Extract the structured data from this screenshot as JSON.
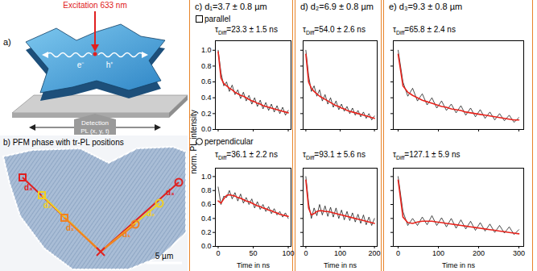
{
  "panel_a": {
    "label": "a)",
    "excitation": "Excitation 633 nm",
    "carriers": [
      "e⁻",
      "h⁺"
    ],
    "detection": "Detection",
    "detection_sub": "PL (x, y, t)"
  },
  "panel_b": {
    "title": "b) PFM phase with tr-PL positions",
    "labels": [
      "d₁",
      "d₂",
      "d₃"
    ],
    "scale_bar": "5 µm"
  },
  "chart_data": [
    {
      "type": "line",
      "title": "c) d₁=3.7 ± 0.8 µm",
      "ylabel": "norm. PL intensity",
      "marker_label": {
        "text": "parallel",
        "marker": "square"
      },
      "annotation": {
        "symbol": "τ",
        "subscript": "Diff",
        "text": "=23.3 ± 1.5 ns"
      },
      "x": [
        0,
        4,
        8,
        12,
        16,
        20,
        24,
        28,
        32,
        36,
        40,
        44,
        48,
        52,
        56,
        60,
        64,
        68,
        72,
        76,
        80,
        84,
        88,
        92,
        96,
        100
      ],
      "series": [
        {
          "color": "#000000",
          "values": [
            1.0,
            0.72,
            0.55,
            0.6,
            0.48,
            0.56,
            0.44,
            0.5,
            0.39,
            0.47,
            0.36,
            0.43,
            0.32,
            0.4,
            0.29,
            0.37,
            0.26,
            0.34,
            0.24,
            0.32,
            0.22,
            0.3,
            0.2,
            0.28,
            0.18,
            0.24
          ]
        },
        {
          "color": "#e8231c",
          "values": [
            0.98,
            0.65,
            0.58,
            0.55,
            0.52,
            0.5,
            0.47,
            0.45,
            0.43,
            0.42,
            0.4,
            0.38,
            0.36,
            0.35,
            0.33,
            0.32,
            0.3,
            0.29,
            0.28,
            0.27,
            0.26,
            0.25,
            0.24,
            0.23,
            0.22,
            0.21
          ]
        }
      ],
      "xlim": [
        -4,
        104
      ],
      "xticks": [
        0,
        50,
        100
      ],
      "ylim": [
        0,
        1.12
      ],
      "yticks": [
        {
          "value": 0,
          "label": "0.0"
        },
        {
          "value": 0.2,
          "label": "0.2"
        },
        {
          "value": 0.4,
          "label": "0.4"
        },
        {
          "value": 0.6,
          "label": "0.6"
        },
        {
          "value": 0.8,
          "label": "0.8"
        },
        {
          "value": 1,
          "label": "1.0"
        }
      ],
      "tick_labels": "y"
    },
    {
      "type": "line",
      "xlabel": "Time in ns",
      "marker_label": {
        "text": "perpendicular",
        "marker": "circle"
      },
      "annotation": {
        "symbol": "τ",
        "subscript": "Diff",
        "text": "=36.1 ± 2.2 ns"
      },
      "x": [
        0,
        4,
        8,
        12,
        16,
        20,
        24,
        28,
        32,
        36,
        40,
        44,
        48,
        52,
        56,
        60,
        64,
        68,
        72,
        76,
        80,
        84,
        88,
        92,
        96,
        100
      ],
      "series": [
        {
          "color": "#000000",
          "values": [
            0.85,
            0.6,
            0.72,
            0.7,
            0.8,
            0.68,
            0.77,
            0.65,
            0.75,
            0.62,
            0.7,
            0.6,
            0.68,
            0.55,
            0.64,
            0.53,
            0.6,
            0.5,
            0.57,
            0.47,
            0.54,
            0.45,
            0.5,
            0.42,
            0.48,
            0.4
          ]
        },
        {
          "color": "#e8231c",
          "values": [
            0.65,
            0.62,
            0.68,
            0.73,
            0.74,
            0.73,
            0.72,
            0.7,
            0.69,
            0.67,
            0.65,
            0.64,
            0.62,
            0.6,
            0.58,
            0.57,
            0.55,
            0.54,
            0.52,
            0.51,
            0.49,
            0.48,
            0.46,
            0.45,
            0.44,
            0.43
          ]
        }
      ],
      "xlim": [
        -4,
        104
      ],
      "xticks": [
        0,
        50,
        100
      ],
      "ylim": [
        0,
        1.12
      ],
      "yticks": [
        {
          "value": 0,
          "label": "0.0"
        },
        {
          "value": 0.2,
          "label": "0.2"
        },
        {
          "value": 0.4,
          "label": "0.4"
        },
        {
          "value": 0.6,
          "label": "0.6"
        },
        {
          "value": 0.8,
          "label": "0.8"
        },
        {
          "value": 1,
          "label": "1.0"
        }
      ],
      "tick_labels": true
    },
    {
      "type": "line",
      "title": "d) d₂=6.9 ± 0.8 µm",
      "annotation": {
        "symbol": "τ",
        "subscript": "Diff",
        "text": "=54.0 ± 2.6 ns"
      },
      "x": [
        0,
        8,
        16,
        24,
        32,
        40,
        48,
        56,
        64,
        72,
        80,
        88,
        96,
        104,
        112,
        120,
        128,
        136,
        144,
        152,
        160,
        168,
        176,
        184,
        192,
        200
      ],
      "series": [
        {
          "color": "#000000",
          "values": [
            1.0,
            0.68,
            0.48,
            0.55,
            0.42,
            0.5,
            0.36,
            0.44,
            0.32,
            0.4,
            0.28,
            0.36,
            0.25,
            0.32,
            0.23,
            0.29,
            0.2,
            0.27,
            0.18,
            0.24,
            0.16,
            0.22,
            0.14,
            0.2,
            0.12,
            0.17
          ]
        },
        {
          "color": "#e8231c",
          "values": [
            0.95,
            0.6,
            0.52,
            0.48,
            0.45,
            0.42,
            0.4,
            0.38,
            0.36,
            0.34,
            0.32,
            0.3,
            0.29,
            0.27,
            0.26,
            0.24,
            0.23,
            0.22,
            0.21,
            0.2,
            0.19,
            0.18,
            0.17,
            0.16,
            0.15,
            0.14
          ]
        }
      ],
      "xlim": [
        -8,
        208
      ],
      "xticks": [
        0,
        100,
        200
      ],
      "ylim": [
        0,
        1.12
      ],
      "yticks": [
        {
          "value": 0,
          "label": "0.0"
        },
        {
          "value": 0.2,
          "label": "0.2"
        },
        {
          "value": 0.4,
          "label": "0.4"
        },
        {
          "value": 0.6,
          "label": "0.6"
        },
        {
          "value": 0.8,
          "label": "0.8"
        },
        {
          "value": 1,
          "label": "1.0"
        }
      ],
      "tick_labels": false
    },
    {
      "type": "line",
      "xlabel": "Time in ns",
      "annotation": {
        "symbol": "τ",
        "subscript": "Diff",
        "text": "=93.1 ± 5.6 ns"
      },
      "x": [
        0,
        8,
        16,
        24,
        32,
        40,
        48,
        56,
        64,
        72,
        80,
        88,
        96,
        104,
        112,
        120,
        128,
        136,
        144,
        152,
        160,
        168,
        176,
        184,
        192,
        200
      ],
      "series": [
        {
          "color": "#000000",
          "values": [
            1.0,
            0.62,
            0.4,
            0.55,
            0.44,
            0.6,
            0.45,
            0.58,
            0.43,
            0.56,
            0.42,
            0.55,
            0.4,
            0.52,
            0.38,
            0.5,
            0.37,
            0.48,
            0.35,
            0.46,
            0.33,
            0.45,
            0.31,
            0.42,
            0.3,
            0.4
          ]
        },
        {
          "color": "#e8231c",
          "values": [
            0.95,
            0.55,
            0.45,
            0.47,
            0.5,
            0.51,
            0.51,
            0.5,
            0.5,
            0.49,
            0.48,
            0.47,
            0.46,
            0.45,
            0.44,
            0.43,
            0.42,
            0.41,
            0.4,
            0.39,
            0.38,
            0.37,
            0.36,
            0.35,
            0.34,
            0.33
          ]
        }
      ],
      "xlim": [
        -8,
        208
      ],
      "xticks": [
        0,
        100,
        200
      ],
      "ylim": [
        0,
        1.12
      ],
      "yticks": [
        {
          "value": 0,
          "label": "0.0"
        },
        {
          "value": 0.2,
          "label": "0.2"
        },
        {
          "value": 0.4,
          "label": "0.4"
        },
        {
          "value": 0.6,
          "label": "0.6"
        },
        {
          "value": 0.8,
          "label": "0.8"
        },
        {
          "value": 1,
          "label": "1.0"
        }
      ],
      "tick_labels": "x"
    },
    {
      "type": "line",
      "title": "e) d₃=9.3 ± 0.8 µm",
      "annotation": {
        "symbol": "τ",
        "subscript": "Diff",
        "text": "=65.8 ± 2.4 ns"
      },
      "x": [
        0,
        12,
        24,
        36,
        48,
        60,
        72,
        84,
        96,
        108,
        120,
        132,
        144,
        156,
        168,
        180,
        192,
        204,
        216,
        228,
        240,
        252,
        264,
        276,
        288,
        300
      ],
      "series": [
        {
          "color": "#000000",
          "values": [
            1.0,
            0.6,
            0.42,
            0.52,
            0.36,
            0.45,
            0.31,
            0.4,
            0.27,
            0.36,
            0.24,
            0.32,
            0.21,
            0.3,
            0.18,
            0.27,
            0.16,
            0.25,
            0.14,
            0.22,
            0.12,
            0.2,
            0.11,
            0.18,
            0.09,
            0.15
          ]
        },
        {
          "color": "#e8231c",
          "values": [
            0.95,
            0.55,
            0.47,
            0.43,
            0.4,
            0.37,
            0.35,
            0.33,
            0.31,
            0.29,
            0.28,
            0.26,
            0.25,
            0.24,
            0.22,
            0.21,
            0.2,
            0.19,
            0.18,
            0.17,
            0.16,
            0.15,
            0.14,
            0.13,
            0.12,
            0.12
          ]
        }
      ],
      "xlim": [
        -12,
        312
      ],
      "xticks": [
        0,
        100,
        200,
        300
      ],
      "ylim": [
        0,
        1.12
      ],
      "yticks": [
        {
          "value": 0,
          "label": "0.0"
        },
        {
          "value": 0.2,
          "label": "0.2"
        },
        {
          "value": 0.4,
          "label": "0.4"
        },
        {
          "value": 0.6,
          "label": "0.6"
        },
        {
          "value": 0.8,
          "label": "0.8"
        },
        {
          "value": 1,
          "label": "1.0"
        }
      ],
      "tick_labels": false
    },
    {
      "type": "line",
      "xlabel": "Time in ns",
      "annotation": {
        "symbol": "τ",
        "subscript": "Diff",
        "text": "=127.1 ± 5.9 ns"
      },
      "x": [
        0,
        12,
        24,
        36,
        48,
        60,
        72,
        84,
        96,
        108,
        120,
        132,
        144,
        156,
        168,
        180,
        192,
        204,
        216,
        228,
        240,
        252,
        264,
        276,
        288,
        300
      ],
      "series": [
        {
          "color": "#000000",
          "values": [
            1.0,
            0.5,
            0.3,
            0.4,
            0.3,
            0.42,
            0.31,
            0.44,
            0.3,
            0.41,
            0.28,
            0.4,
            0.26,
            0.38,
            0.25,
            0.36,
            0.23,
            0.34,
            0.22,
            0.32,
            0.2,
            0.3,
            0.19,
            0.28,
            0.17,
            0.24
          ]
        },
        {
          "color": "#e8231c",
          "values": [
            0.95,
            0.42,
            0.34,
            0.33,
            0.35,
            0.36,
            0.36,
            0.36,
            0.35,
            0.34,
            0.33,
            0.32,
            0.31,
            0.3,
            0.29,
            0.28,
            0.27,
            0.26,
            0.25,
            0.24,
            0.23,
            0.22,
            0.21,
            0.2,
            0.19,
            0.18
          ]
        }
      ],
      "xlim": [
        -12,
        312
      ],
      "xticks": [
        0,
        100,
        200,
        300
      ],
      "ylim": [
        0,
        1.12
      ],
      "yticks": [
        {
          "value": 0,
          "label": "0.0"
        },
        {
          "value": 0.2,
          "label": "0.2"
        },
        {
          "value": 0.4,
          "label": "0.4"
        },
        {
          "value": 0.6,
          "label": "0.6"
        },
        {
          "value": 0.8,
          "label": "0.8"
        },
        {
          "value": 1,
          "label": "1.0"
        }
      ],
      "tick_labels": "x"
    }
  ]
}
